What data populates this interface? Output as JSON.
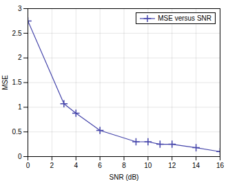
{
  "chart_data": {
    "type": "line",
    "x": [
      0,
      3,
      4,
      6,
      9,
      10,
      11,
      12,
      14,
      16
    ],
    "series": [
      {
        "name": "MSE versus SNR",
        "color": "#4444aa",
        "marker": "plus",
        "line_style": "solid",
        "values": [
          2.75,
          1.07,
          0.88,
          0.53,
          0.3,
          0.3,
          0.25,
          0.25,
          0.18,
          0.1
        ]
      }
    ],
    "xlabel": "SNR (dB)",
    "ylabel": "MSE",
    "xlim": [
      0,
      16
    ],
    "ylim": [
      0,
      3
    ],
    "xticks": [
      0,
      2,
      4,
      6,
      8,
      10,
      12,
      14,
      16
    ],
    "yticks": [
      0,
      0.5,
      1,
      1.5,
      2,
      2.5,
      3
    ],
    "grid": true,
    "legend": "upper right"
  }
}
